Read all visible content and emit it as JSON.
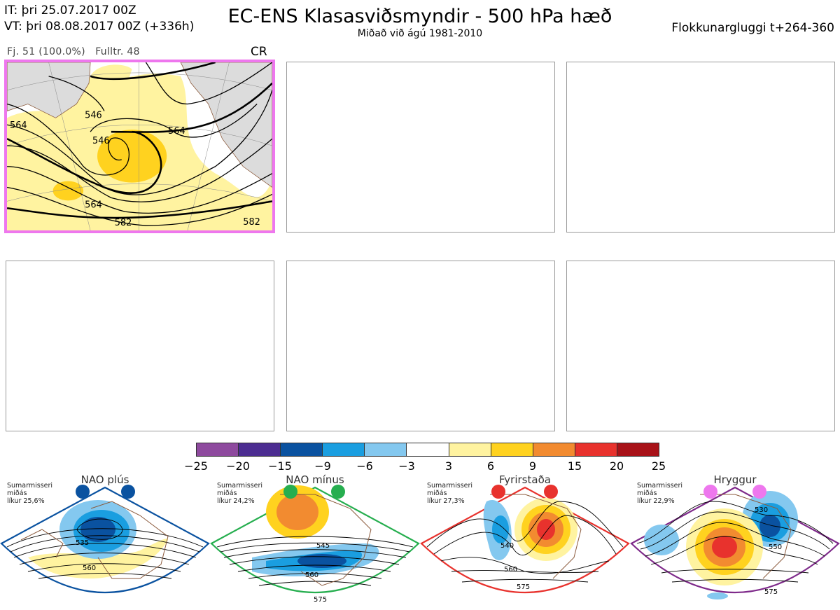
{
  "header": {
    "it_line": "IT: þri 25.07.2017 00Z",
    "vt_line": "VT: þri 08.08.2017 00Z  (+336h)",
    "title": "EC-ENS Klasasviðsmyndir - 500 hPa hæð",
    "subtitle": "Miðað við ágú 1981-2010",
    "window": "Flokkunargluggi t+264-360"
  },
  "cluster_panel": {
    "count_label": "Fj. 51 (100.0%)",
    "representative_label": "Fulltr. 48",
    "regime_code": "CR",
    "contour_labels": [
      "564",
      "546",
      "564",
      "582",
      "582",
      "564",
      "546"
    ]
  },
  "colors": {
    "land": "#dcdcdc",
    "coast": "#8b5a3c",
    "selected_border": "#ee77ee",
    "anomaly_scale": [
      "#8e4a9e",
      "#4c2d91",
      "#0a52a0",
      "#1a9ee0",
      "#84c8ef",
      "#ffffff",
      "#fff3a0",
      "#ffd21f",
      "#f28b30",
      "#e8322d",
      "#a81218"
    ]
  },
  "colorbar": {
    "ticks": [
      "−25",
      "−20",
      "−15",
      "−9",
      "−6",
      "−3",
      "3",
      "6",
      "9",
      "15",
      "20",
      "25"
    ]
  },
  "regimes": [
    {
      "name": "NAO plús",
      "season": "Sumarmisseri",
      "lines": [
        "miðás",
        "líkur 25,6%"
      ],
      "marker_color": "#0a52a0",
      "frame_color": "#0a52a0",
      "contour_labels": [
        "535",
        "560"
      ]
    },
    {
      "name": "NAO mínus",
      "season": "Sumarmisseri",
      "lines": [
        "miðás",
        "líkur 24,2%"
      ],
      "marker_color": "#26ae4f",
      "frame_color": "#26ae4f",
      "contour_labels": [
        "545",
        "560",
        "575"
      ]
    },
    {
      "name": "Fyrirstaða",
      "season": "Sumarmisseri",
      "lines": [
        "miðás",
        "líkur 27,3%"
      ],
      "marker_color": "#e8322d",
      "frame_color": "#e8322d",
      "contour_labels": [
        "540",
        "560",
        "575"
      ]
    },
    {
      "name": "Hryggur",
      "season": "Sumarmisseri",
      "lines": [
        "miðás",
        "líkur 22,9%"
      ],
      "marker_color": "#ee77ee",
      "frame_color": "#7e2a8a",
      "contour_labels": [
        "530",
        "550",
        "575"
      ]
    }
  ]
}
